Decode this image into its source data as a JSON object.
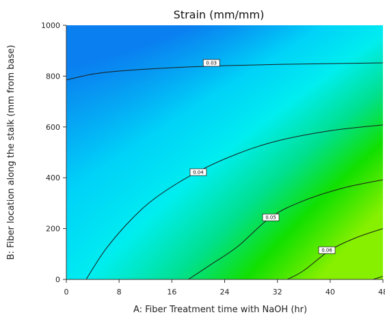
{
  "chart_data": {
    "type": "contour",
    "title": "Strain (mm/mm)",
    "xlabel": "A: Fiber Treatment time with NaOH (hr)",
    "ylabel": "B: Fiber location along the stalk (mm from base)",
    "xlim": [
      0,
      48
    ],
    "ylim": [
      0,
      1000
    ],
    "x_ticks": [
      "0",
      "8",
      "16",
      "24",
      "32",
      "40",
      "48"
    ],
    "y_ticks": [
      "0",
      "200",
      "400",
      "600",
      "800",
      "1000"
    ],
    "contours": [
      {
        "level_label": "0.03",
        "points": [
          [
            0,
            785
          ],
          [
            4,
            808
          ],
          [
            8,
            820
          ],
          [
            16,
            833
          ],
          [
            24,
            841
          ],
          [
            32,
            846
          ],
          [
            40,
            849
          ],
          [
            48,
            852
          ]
        ],
        "label_at": [
          22,
          852
        ]
      },
      {
        "level_label": "0.04",
        "points": [
          [
            3,
            0
          ],
          [
            6,
            120
          ],
          [
            10,
            240
          ],
          [
            14,
            330
          ],
          [
            20,
            425
          ],
          [
            26,
            495
          ],
          [
            32,
            545
          ],
          [
            40,
            585
          ],
          [
            48,
            608
          ]
        ],
        "label_at": [
          20,
          422
        ]
      },
      {
        "level_label": "0.05",
        "points": [
          [
            18.5,
            0
          ],
          [
            22,
            60
          ],
          [
            26,
            130
          ],
          [
            31,
            245
          ],
          [
            36,
            310
          ],
          [
            42,
            360
          ],
          [
            48,
            392
          ]
        ],
        "label_at": [
          31,
          244
        ]
      },
      {
        "level_label": "0.06",
        "points": [
          [
            33.5,
            0
          ],
          [
            36,
            35
          ],
          [
            40,
            115
          ],
          [
            44,
            165
          ],
          [
            48,
            200
          ]
        ],
        "label_at": [
          39.5,
          115
        ]
      },
      {
        "level_label": "",
        "points": [
          [
            46.5,
            0
          ],
          [
            48,
            12
          ]
        ],
        "label_at": null
      }
    ],
    "colormap": [
      {
        "value": 0.025,
        "color": "#0a7ff0"
      },
      {
        "value": 0.033,
        "color": "#00d2f8"
      },
      {
        "value": 0.04,
        "color": "#00eef0"
      },
      {
        "value": 0.048,
        "color": "#00e090"
      },
      {
        "value": 0.056,
        "color": "#12e000"
      },
      {
        "value": 0.066,
        "color": "#86f000"
      }
    ],
    "grid": false
  }
}
